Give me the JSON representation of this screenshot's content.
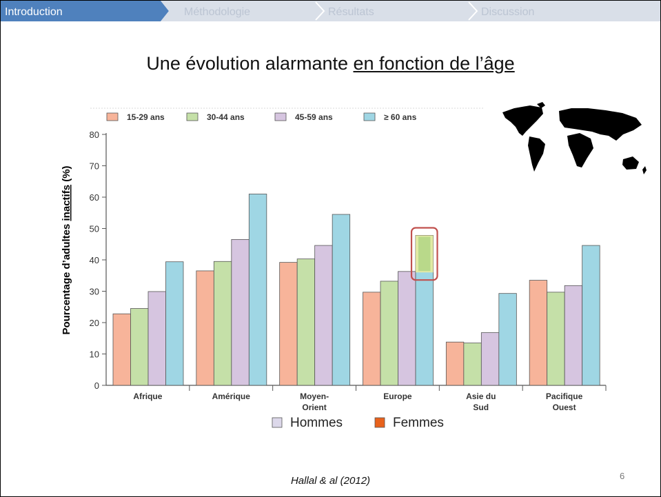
{
  "nav": {
    "items": [
      {
        "label": "Introduction",
        "active": true
      },
      {
        "label": "Méthodologie",
        "active": false
      },
      {
        "label": "Résultats",
        "active": false
      },
      {
        "label": "Discussion",
        "active": false
      }
    ],
    "active_color": "#4f81bd",
    "inactive_color": "#d9dfe8"
  },
  "slide": {
    "title_plain": "Une évolution alarmante ",
    "title_underlined": "en fonction de l’âge",
    "citation": "Hallal & al (2012)",
    "page_number": "6",
    "map_icon": "world-map-icon"
  },
  "chart_data": {
    "type": "bar",
    "ylabel_prefix": "Pourcentage  d’adultes ",
    "ylabel_underlined": "inactifs",
    "ylabel_suffix": " (%)",
    "ylim": [
      0,
      80
    ],
    "yticks": [
      "0",
      "10",
      "20",
      "30",
      "40",
      "50",
      "60",
      "70",
      "80"
    ],
    "categories": [
      [
        "Afrique"
      ],
      [
        "Amérique"
      ],
      [
        "Moyen-",
        "Orient"
      ],
      [
        "Europe"
      ],
      [
        "Asie du",
        "Sud"
      ],
      [
        "Pacifique",
        "Ouest"
      ]
    ],
    "series": [
      {
        "name": "15-29 ans",
        "color": "#f7b49a",
        "values": [
          22.8,
          36.5,
          39.2,
          29.7,
          13.8,
          33.5
        ]
      },
      {
        "name": "30-44 ans",
        "color": "#c5e0a8",
        "values": [
          24.5,
          39.5,
          40.3,
          33.2,
          13.5,
          29.7
        ]
      },
      {
        "name": "45-59 ans",
        "color": "#d6c5e0",
        "values": [
          29.9,
          46.5,
          44.6,
          36.3,
          16.8,
          31.8
        ]
      },
      {
        "name": "≥ 60 ans",
        "color": "#9fd6e4",
        "values": [
          39.4,
          61.0,
          54.5,
          47.8,
          29.3,
          44.6
        ]
      }
    ],
    "highlight": {
      "category_index": 3,
      "series_index": 3,
      "fill": "#f8f090",
      "border": "#c0504d"
    },
    "bottom_legend": [
      {
        "label": "Hommes",
        "color": "#dcd8ea"
      },
      {
        "label": "Femmes",
        "color": "#e8621c"
      }
    ],
    "grid": false,
    "legend_position": "top-left"
  }
}
